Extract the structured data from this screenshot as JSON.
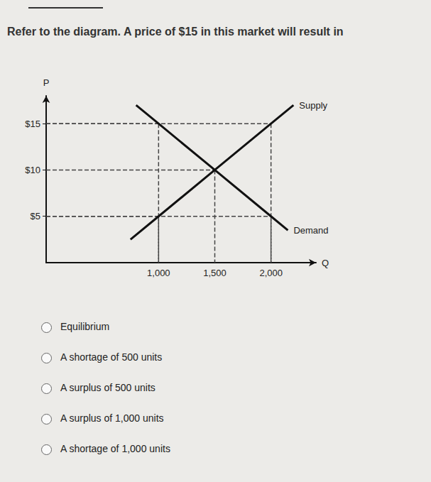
{
  "question": "Refer to the diagram. A price of $15 in this market will result in",
  "chart_data": {
    "type": "line",
    "x_label": "Q",
    "y_label": "P",
    "xlim": [
      0,
      2400
    ],
    "ylim": [
      0,
      18
    ],
    "xticks": [
      {
        "value": 1000,
        "label": "1,000"
      },
      {
        "value": 1500,
        "label": "1,500"
      },
      {
        "value": 2000,
        "label": "2,000"
      }
    ],
    "yticks": [
      {
        "value": 5,
        "label": "$5"
      },
      {
        "value": 10,
        "label": "$10"
      },
      {
        "value": 15,
        "label": "$15"
      }
    ],
    "grid": false,
    "series": [
      {
        "name": "Supply",
        "color": "#111111",
        "x": [
          750,
          1000,
          1500,
          2000,
          2200
        ],
        "values": [
          2.5,
          5,
          10,
          15,
          17
        ]
      },
      {
        "name": "Demand",
        "color": "#111111",
        "x": [
          800,
          1000,
          1500,
          2000,
          2150
        ],
        "values": [
          17,
          15,
          10,
          5,
          3.5
        ]
      }
    ],
    "guides": [
      {
        "x": 1000,
        "y": 15
      },
      {
        "x": 2000,
        "y": 15
      },
      {
        "x": 1500,
        "y": 10
      },
      {
        "x": 1000,
        "y": 5
      },
      {
        "x": 2000,
        "y": 5
      }
    ]
  },
  "options": [
    "Equilibrium",
    "A shortage of 500 units",
    "A surplus of 500 units",
    "A surplus of 1,000 units",
    "A shortage of 1,000 units"
  ]
}
